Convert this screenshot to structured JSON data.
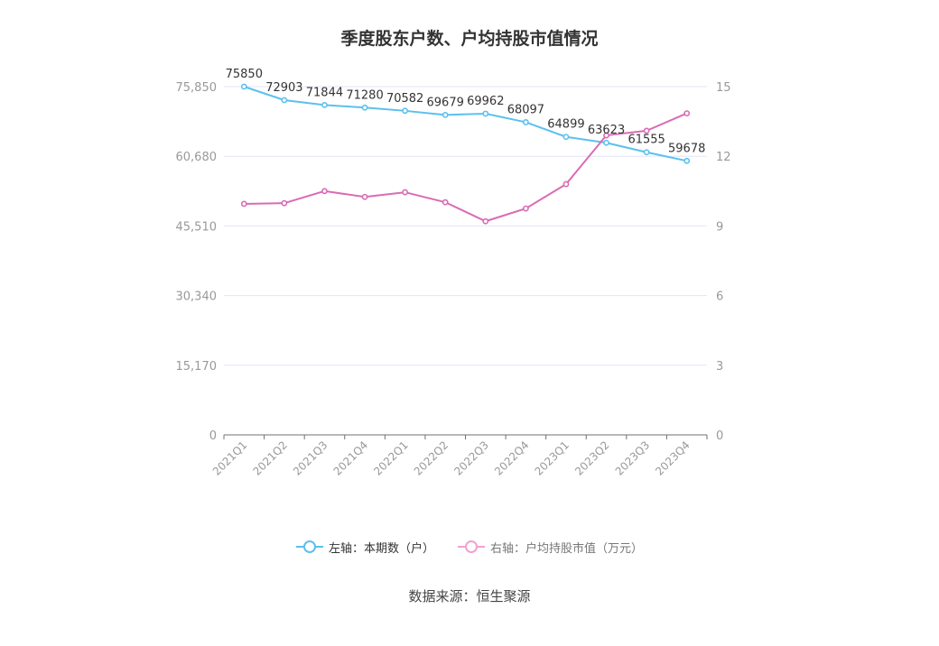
{
  "chart_data": {
    "type": "line",
    "title": "季度股东户数、户均持股市值情况",
    "categories": [
      "2021Q1",
      "2021Q2",
      "2021Q3",
      "2021Q4",
      "2022Q1",
      "2022Q2",
      "2022Q3",
      "2022Q4",
      "2023Q1",
      "2023Q2",
      "2023Q3",
      "2023Q4"
    ],
    "left_axis": {
      "ticks": [
        "0",
        "15,170",
        "30,340",
        "45,510",
        "60,680",
        "75,850"
      ],
      "ylim": [
        0,
        75850
      ]
    },
    "right_axis": {
      "ticks": [
        "0",
        "3",
        "6",
        "9",
        "12",
        "15"
      ],
      "ylim": [
        0,
        15
      ]
    },
    "series": [
      {
        "name": "左轴：本期数（户）",
        "axis": "left",
        "color": "#5bc0ee",
        "values": [
          75850,
          72903,
          71844,
          71280,
          70582,
          69679,
          69962,
          68097,
          64899,
          63623,
          61555,
          59678
        ],
        "labels": [
          "75850",
          "72903",
          "71844",
          "71280",
          "70582",
          "69679",
          "69962",
          "68097",
          "64899",
          "63623",
          "61555",
          "59678"
        ]
      },
      {
        "name": "右轴：户均持股市值（万元）",
        "axis": "right",
        "color": "#d96bb5",
        "values": [
          9.95,
          9.98,
          10.5,
          10.25,
          10.45,
          10.02,
          9.2,
          9.75,
          10.8,
          12.9,
          13.1,
          13.85
        ]
      }
    ],
    "grid": true,
    "legend_position": "bottom"
  },
  "legend": {
    "left_label": "左轴：本期数（户）",
    "right_label": "右轴：户均持股市值（万元）"
  },
  "source": "数据来源：恒生聚源"
}
